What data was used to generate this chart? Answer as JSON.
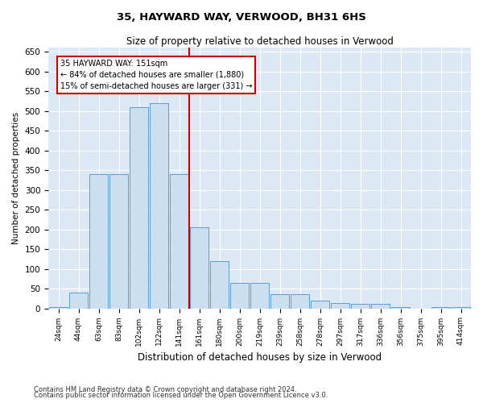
{
  "title": "35, HAYWARD WAY, VERWOOD, BH31 6HS",
  "subtitle": "Size of property relative to detached houses in Verwood",
  "xlabel": "Distribution of detached houses by size in Verwood",
  "ylabel": "Number of detached properties",
  "categories": [
    "24sqm",
    "44sqm",
    "63sqm",
    "83sqm",
    "102sqm",
    "122sqm",
    "141sqm",
    "161sqm",
    "180sqm",
    "200sqm",
    "219sqm",
    "239sqm",
    "258sqm",
    "278sqm",
    "297sqm",
    "317sqm",
    "336sqm",
    "356sqm",
    "375sqm",
    "395sqm",
    "414sqm"
  ],
  "values": [
    3,
    40,
    340,
    340,
    510,
    520,
    340,
    205,
    120,
    65,
    65,
    35,
    35,
    20,
    13,
    12,
    12,
    3,
    0,
    3,
    3
  ],
  "bar_color": "#ccdff0",
  "bar_edge_color": "#5b9bd5",
  "background_color": "#dce9f5",
  "grid_color": "#ffffff",
  "vline_x": 7,
  "vline_color": "#cc0000",
  "annotation_line1": "35 HAYWARD WAY: 151sqm",
  "annotation_line2": "← 84% of detached houses are smaller (1,880)",
  "annotation_line3": "15% of semi-detached houses are larger (331) →",
  "annotation_box_color": "#ffffff",
  "annotation_box_edge": "#cc0000",
  "footnote1": "Contains HM Land Registry data © Crown copyright and database right 2024.",
  "footnote2": "Contains public sector information licensed under the Open Government Licence v3.0.",
  "ylim": [
    0,
    660
  ],
  "yticks": [
    0,
    50,
    100,
    150,
    200,
    250,
    300,
    350,
    400,
    450,
    500,
    550,
    600,
    650
  ]
}
